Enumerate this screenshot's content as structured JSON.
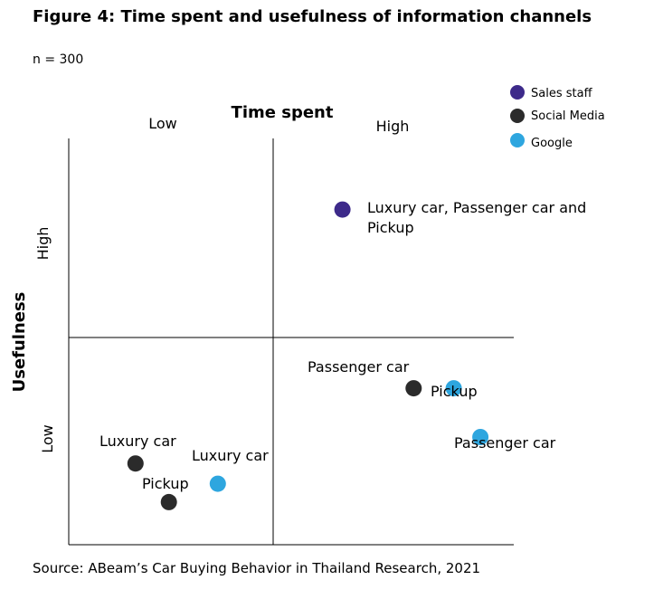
{
  "figure": {
    "title": "Figure 4: Time spent and usefulness of information channels",
    "subtitle": "n = 300",
    "source": "Source: ABeam’s Car Buying Behavior in Thailand Research, 2021"
  },
  "chart_data": {
    "type": "scatter",
    "title": "Figure 4: Time spent and usefulness of information channels",
    "xlabel": "Time spent",
    "ylabel": "Usefulness",
    "x_tick_labels": [
      "Low",
      "High"
    ],
    "y_tick_labels": [
      "Low",
      "High"
    ],
    "xlim": [
      0,
      100
    ],
    "ylim": [
      0,
      100
    ],
    "grid": false,
    "legend_position": "top-right",
    "series": [
      {
        "name": "Sales staff",
        "color": "#3d2a8a",
        "points": [
          {
            "x": 61.5,
            "y": 82.5,
            "label": "Luxury car, Passenger car and Pickup"
          }
        ]
      },
      {
        "name": "Social Media",
        "color": "#2b2b2b",
        "points": [
          {
            "x": 77.5,
            "y": 38.5,
            "label": "Passenger car"
          },
          {
            "x": 15.0,
            "y": 20.0,
            "label": "Luxury car"
          },
          {
            "x": 22.5,
            "y": 10.5,
            "label": "Pickup"
          }
        ]
      },
      {
        "name": "Google",
        "color": "#2ea6df",
        "points": [
          {
            "x": 86.5,
            "y": 38.5,
            "label": "Pickup"
          },
          {
            "x": 92.5,
            "y": 26.5,
            "label": "Passenger car"
          },
          {
            "x": 33.5,
            "y": 15.0,
            "label": "Luxury car"
          }
        ]
      }
    ]
  }
}
